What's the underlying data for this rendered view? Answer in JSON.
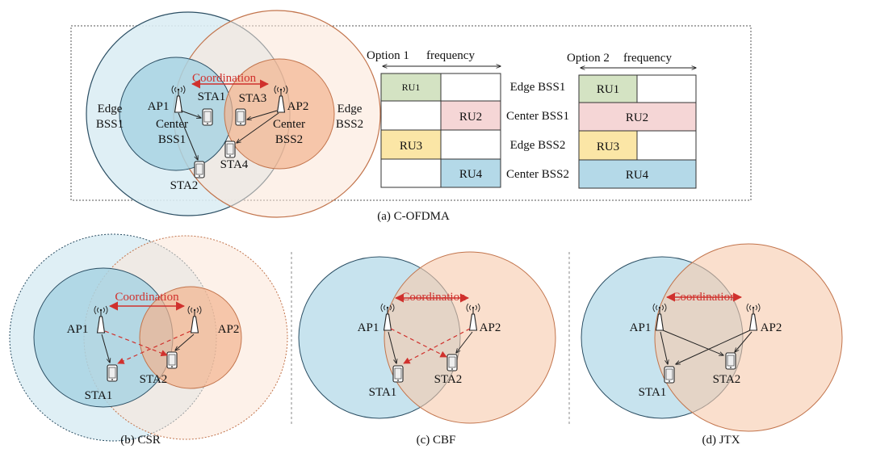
{
  "colors": {
    "blue_outer": "#dcedf4",
    "blue_inner": "#a9d3e3",
    "orange_outer": "#fbe5d7",
    "orange_inner": "#f2b48e",
    "coordination": "#d0312d",
    "ru_green": "#d4e3c3",
    "ru_pink": "#f5d6d6",
    "ru_yellow": "#fbe6a6",
    "ru_blue": "#b4d9e8"
  },
  "icons": [
    "antenna-icon",
    "phone-icon"
  ],
  "panel_a": {
    "caption": "(a) C-OFDMA",
    "coordination": "Coordination",
    "edge_bss1": [
      "Edge",
      "BSS1"
    ],
    "edge_bss2": [
      "Edge",
      "BSS2"
    ],
    "ap1": "AP1",
    "ap2": "AP2",
    "center1": [
      "Center",
      "BSS1"
    ],
    "center2": [
      "Center",
      "BSS2"
    ],
    "sta1": "STA1",
    "sta2": "STA2",
    "sta3": "STA3",
    "sta4": "STA4",
    "option1": {
      "title": "Option 1",
      "axis": "frequency"
    },
    "option2": {
      "title": "Option 2",
      "axis": "frequency"
    },
    "row_labels": [
      "Edge BSS1",
      "Center BSS1",
      "Edge BSS2",
      "Center BSS2"
    ],
    "ru": [
      "RU1",
      "RU2",
      "RU3",
      "RU4"
    ]
  },
  "panel_b": {
    "caption": "(b)  CSR",
    "coordination": "Coordination",
    "ap1": "AP1",
    "ap2": "AP2",
    "sta1": "STA1",
    "sta2": "STA2"
  },
  "panel_c": {
    "caption": "(c) CBF",
    "coordination": "Coordination",
    "ap1": "AP1",
    "ap2": "AP2",
    "sta1": "STA1",
    "sta2": "STA2"
  },
  "panel_d": {
    "caption": "(d) JTX",
    "coordination": "Coordination",
    "ap1": "AP1",
    "ap2": "AP2",
    "sta1": "STA1",
    "sta2": "STA2"
  }
}
